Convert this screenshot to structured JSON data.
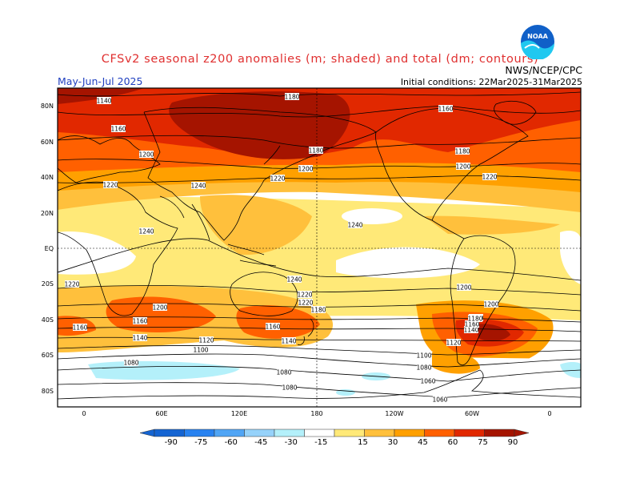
{
  "header": {
    "title": "CFSv2 seasonal z200 anomalies (m; shaded) and total (dm; contours)",
    "season": "May-Jun-Jul 2025",
    "center": "NWS/NCEP/CPC",
    "initial_conditions": "Initial conditions: 22Mar2025-31Mar2025",
    "title_color": "#e03030",
    "season_color": "#2040c0"
  },
  "logo": {
    "icon": "noaa-logo",
    "text": "NOAA",
    "colors": [
      "#1060c8",
      "#20c8f0"
    ]
  },
  "map": {
    "lat_labels": [
      "80N",
      "60N",
      "40N",
      "20N",
      "EQ",
      "20S",
      "40S",
      "60S",
      "80S"
    ],
    "lon_labels": [
      "0",
      "60E",
      "120E",
      "180",
      "120W",
      "60W",
      "0"
    ],
    "contour_labels": [
      {
        "text": "1140"
      },
      {
        "text": "1180"
      },
      {
        "text": "1160"
      },
      {
        "text": "1160"
      },
      {
        "text": "1200"
      },
      {
        "text": "1180"
      },
      {
        "text": "1200"
      },
      {
        "text": "1180"
      },
      {
        "text": "1200"
      },
      {
        "text": "1220"
      },
      {
        "text": "1220"
      },
      {
        "text": "1240"
      },
      {
        "text": "1220"
      },
      {
        "text": "1240"
      },
      {
        "text": "1240"
      },
      {
        "text": "1240"
      },
      {
        "text": "1220"
      },
      {
        "text": "1220"
      },
      {
        "text": "1200"
      },
      {
        "text": "1220"
      },
      {
        "text": "1200"
      },
      {
        "text": "1200"
      },
      {
        "text": "1180"
      },
      {
        "text": "1160"
      },
      {
        "text": "1180"
      },
      {
        "text": "1160"
      },
      {
        "text": "1160"
      },
      {
        "text": "1140"
      },
      {
        "text": "1140"
      },
      {
        "text": "1140"
      },
      {
        "text": "1120"
      },
      {
        "text": "1120"
      },
      {
        "text": "1100"
      },
      {
        "text": "1100"
      },
      {
        "text": "1080"
      },
      {
        "text": "1080"
      },
      {
        "text": "1080"
      },
      {
        "text": "1060"
      },
      {
        "text": "1080"
      },
      {
        "text": "1060"
      },
      {
        "text": "1160"
      },
      {
        "text": "1180"
      }
    ]
  },
  "colorbar": {
    "labels": [
      "-90",
      "-75",
      "-60",
      "-45",
      "-30",
      "-15",
      "15",
      "30",
      "45",
      "60",
      "75",
      "90"
    ],
    "colors": [
      "#1464d2",
      "#2882f0",
      "#50a5f5",
      "#96d2fa",
      "#b4f0fa",
      "#ffffff",
      "#ffe978",
      "#ffc03c",
      "#ffa000",
      "#ff6000",
      "#e12800",
      "#a51400"
    ]
  }
}
